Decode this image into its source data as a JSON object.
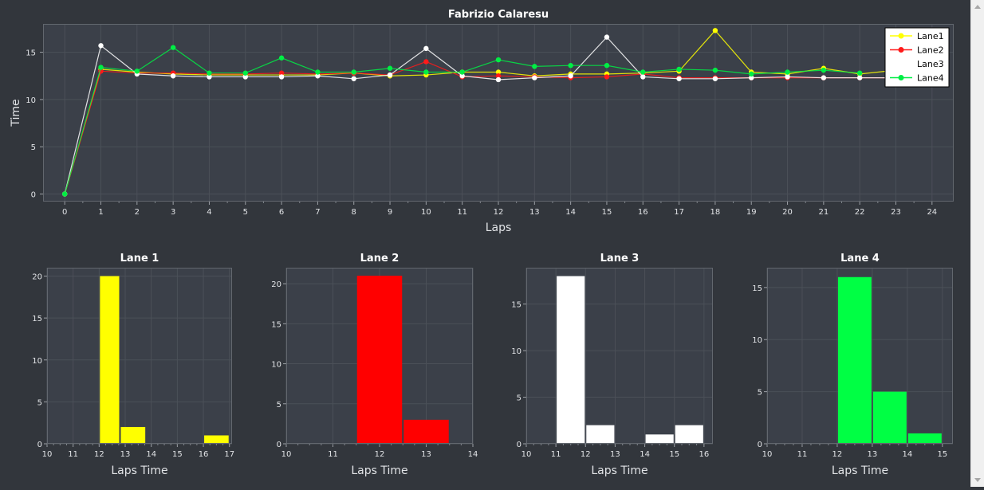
{
  "chart_data": [
    {
      "type": "line",
      "title": "Fabrizio Calaresu",
      "xlabel": "Laps",
      "ylabel": "Time",
      "xlim": [
        -0.6,
        24.6
      ],
      "ylim": [
        -0.8,
        18
      ],
      "x_ticks": [
        0,
        1,
        2,
        3,
        4,
        5,
        6,
        7,
        8,
        9,
        10,
        11,
        12,
        13,
        14,
        15,
        16,
        17,
        18,
        19,
        20,
        21,
        22,
        23,
        24
      ],
      "y_ticks": [
        0,
        5,
        10,
        15
      ],
      "grid": true,
      "legend_position": "top-right",
      "x": [
        0,
        1,
        2,
        3,
        4,
        5,
        6,
        7,
        8,
        9,
        10,
        11,
        12,
        13,
        14,
        15,
        16,
        17,
        18,
        19,
        20,
        21,
        22,
        23,
        24
      ],
      "series": [
        {
          "name": "Lane1",
          "color": "#ffff00",
          "markers": true,
          "values": [
            0,
            13.2,
            12.9,
            12.7,
            12.6,
            12.6,
            12.6,
            12.6,
            12.8,
            12.5,
            12.6,
            12.9,
            12.9,
            12.5,
            12.7,
            12.7,
            12.8,
            13.0,
            17.3,
            12.9,
            12.7,
            13.3,
            12.7,
            13.1,
            null
          ]
        },
        {
          "name": "Lane2",
          "color": "#ff1a1a",
          "markers": true,
          "values": [
            0,
            13.0,
            12.8,
            12.8,
            12.7,
            12.7,
            12.8,
            12.7,
            12.8,
            12.6,
            14.0,
            12.4,
            12.5,
            12.4,
            12.3,
            12.4,
            12.7,
            12.3,
            12.3,
            12.3,
            12.3,
            12.3,
            12.3,
            12.3,
            null
          ]
        },
        {
          "name": "Lane3",
          "color": "#ffffff",
          "markers": true,
          "values": [
            0,
            15.7,
            12.7,
            12.5,
            12.4,
            12.4,
            12.4,
            12.5,
            12.2,
            12.6,
            15.4,
            12.5,
            12.1,
            12.3,
            12.5,
            16.6,
            12.4,
            12.2,
            12.2,
            12.3,
            12.4,
            12.3,
            12.3,
            12.3,
            null
          ]
        },
        {
          "name": "Lane4",
          "color": "#00ee44",
          "markers": true,
          "values": [
            0,
            13.4,
            13.0,
            15.5,
            12.8,
            12.8,
            14.4,
            12.9,
            12.9,
            13.3,
            12.9,
            12.9,
            14.2,
            13.5,
            13.6,
            13.6,
            12.9,
            13.2,
            13.1,
            12.7,
            12.9,
            13.1,
            12.8,
            null,
            null
          ]
        }
      ]
    },
    {
      "type": "bar",
      "title": "Lane 1",
      "xlabel": "Laps Time",
      "ylabel": "",
      "color": "#ffff00",
      "xlim": [
        10,
        17.1
      ],
      "ylim": [
        0,
        21
      ],
      "x_ticks": [
        10,
        11,
        12,
        13,
        14,
        15,
        16,
        17
      ],
      "y_ticks": [
        0,
        5,
        10,
        15,
        20
      ],
      "bins": [
        {
          "start": 12.0,
          "end": 12.8,
          "count": 20
        },
        {
          "start": 12.8,
          "end": 13.8,
          "count": 2
        },
        {
          "start": 16.0,
          "end": 17.0,
          "count": 1
        }
      ]
    },
    {
      "type": "bar",
      "title": "Lane 2",
      "xlabel": "Laps Time",
      "ylabel": "",
      "color": "#ff0000",
      "xlim": [
        10,
        14
      ],
      "ylim": [
        0,
        22
      ],
      "x_ticks": [
        10,
        11,
        12,
        13,
        14
      ],
      "y_ticks": [
        0,
        5,
        10,
        15,
        20
      ],
      "bins": [
        {
          "start": 11.5,
          "end": 12.5,
          "count": 21
        },
        {
          "start": 12.5,
          "end": 13.5,
          "count": 3
        }
      ]
    },
    {
      "type": "bar",
      "title": "Lane 3",
      "xlabel": "Laps Time",
      "ylabel": "",
      "color": "#ffffff",
      "xlim": [
        10,
        16.3
      ],
      "ylim": [
        0,
        18.9
      ],
      "x_ticks": [
        10,
        11,
        12,
        13,
        14,
        15,
        16
      ],
      "y_ticks": [
        0,
        5,
        10,
        15
      ],
      "bins": [
        {
          "start": 11.0,
          "end": 12.0,
          "count": 18
        },
        {
          "start": 12.0,
          "end": 13.0,
          "count": 2
        },
        {
          "start": 14.0,
          "end": 15.0,
          "count": 1
        },
        {
          "start": 15.0,
          "end": 16.0,
          "count": 2
        }
      ]
    },
    {
      "type": "bar",
      "title": "Lane 4",
      "xlabel": "Laps Time",
      "ylabel": "",
      "color": "#00ff44",
      "xlim": [
        10,
        15.3
      ],
      "ylim": [
        0,
        16.9
      ],
      "x_ticks": [
        10,
        11,
        12,
        13,
        14,
        15
      ],
      "y_ticks": [
        0,
        5,
        10,
        15
      ],
      "bins": [
        {
          "start": 12.0,
          "end": 13.0,
          "count": 16
        },
        {
          "start": 13.0,
          "end": 14.0,
          "count": 5
        },
        {
          "start": 14.0,
          "end": 15.0,
          "count": 1
        }
      ]
    }
  ]
}
